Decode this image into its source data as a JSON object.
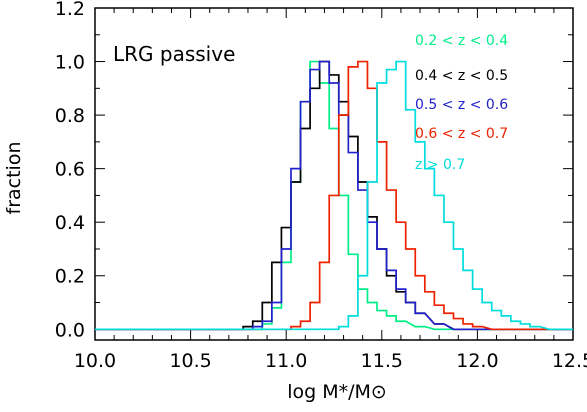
{
  "chart_data": {
    "type": "line",
    "annotation": "LRG passive",
    "xlabel": "log M*/M⊙",
    "ylabel": "fraction",
    "xlim": [
      10.0,
      12.5
    ],
    "ylim": [
      -0.04,
      1.2
    ],
    "xticks": [
      "10.0",
      "10.5",
      "11.0",
      "11.5",
      "12.0",
      "12.5"
    ],
    "yticks": [
      "0.0",
      "0.2",
      "0.4",
      "0.6",
      "0.8",
      "1.0",
      "1.2"
    ],
    "step_mode": "histogram",
    "bin_width": 0.025,
    "legend_position": "top-right",
    "series": [
      {
        "name": "0.2 < z < 0.4",
        "color": "#00ee88",
        "x": [
          10.8,
          10.85,
          10.9,
          10.95,
          11.0,
          11.05,
          11.1,
          11.15,
          11.2,
          11.25,
          11.3,
          11.35,
          11.4,
          11.45,
          11.5,
          11.55,
          11.6,
          11.7,
          11.8
        ],
        "y": [
          0.0,
          0.0,
          0.02,
          0.08,
          0.25,
          0.55,
          0.85,
          1.0,
          0.92,
          0.75,
          0.5,
          0.28,
          0.15,
          0.1,
          0.07,
          0.05,
          0.03,
          0.01,
          0.0
        ]
      },
      {
        "name": "0.4 < z < 0.5",
        "color": "#000000",
        "x": [
          10.75,
          10.8,
          10.85,
          10.9,
          10.95,
          11.0,
          11.05,
          11.1,
          11.15,
          11.2,
          11.25,
          11.3,
          11.35,
          11.4,
          11.45,
          11.5,
          11.55,
          11.6,
          11.65,
          11.7,
          11.8,
          11.9
        ],
        "y": [
          0.0,
          0.01,
          0.03,
          0.1,
          0.25,
          0.38,
          0.55,
          0.75,
          0.9,
          1.0,
          0.95,
          0.85,
          0.72,
          0.55,
          0.42,
          0.3,
          0.2,
          0.14,
          0.1,
          0.06,
          0.02,
          0.0
        ]
      },
      {
        "name": "0.5 < z < 0.6",
        "color": "#2222cc",
        "x": [
          10.8,
          10.85,
          10.9,
          10.95,
          11.0,
          11.05,
          11.1,
          11.15,
          11.2,
          11.25,
          11.3,
          11.35,
          11.4,
          11.45,
          11.5,
          11.55,
          11.6,
          11.65,
          11.7,
          11.8,
          11.9
        ],
        "y": [
          0.0,
          0.01,
          0.03,
          0.1,
          0.3,
          0.6,
          0.85,
          0.97,
          1.0,
          0.92,
          0.8,
          0.66,
          0.52,
          0.4,
          0.3,
          0.22,
          0.15,
          0.1,
          0.06,
          0.02,
          0.0
        ]
      },
      {
        "name": "0.6 < z < 0.7",
        "color": "#ee2200",
        "x": [
          11.0,
          11.05,
          11.1,
          11.15,
          11.2,
          11.25,
          11.3,
          11.35,
          11.4,
          11.45,
          11.5,
          11.55,
          11.6,
          11.65,
          11.7,
          11.75,
          11.8,
          11.85,
          11.9,
          11.95,
          12.0,
          12.1
        ],
        "y": [
          0.0,
          0.01,
          0.03,
          0.1,
          0.25,
          0.5,
          0.8,
          0.98,
          1.0,
          0.9,
          0.7,
          0.52,
          0.4,
          0.3,
          0.2,
          0.14,
          0.09,
          0.06,
          0.04,
          0.02,
          0.01,
          0.0
        ]
      },
      {
        "name": "z > 0.7",
        "color": "#00dddd",
        "x": [
          11.25,
          11.3,
          11.35,
          11.4,
          11.45,
          11.5,
          11.55,
          11.6,
          11.65,
          11.7,
          11.75,
          11.8,
          11.85,
          11.9,
          11.95,
          12.0,
          12.05,
          12.1,
          12.15,
          12.2,
          12.25,
          12.3,
          12.4
        ],
        "y": [
          0.0,
          0.01,
          0.05,
          0.2,
          0.55,
          0.92,
          0.97,
          1.0,
          0.82,
          0.7,
          0.6,
          0.5,
          0.4,
          0.3,
          0.22,
          0.15,
          0.1,
          0.07,
          0.05,
          0.03,
          0.02,
          0.01,
          0.0
        ]
      }
    ]
  }
}
